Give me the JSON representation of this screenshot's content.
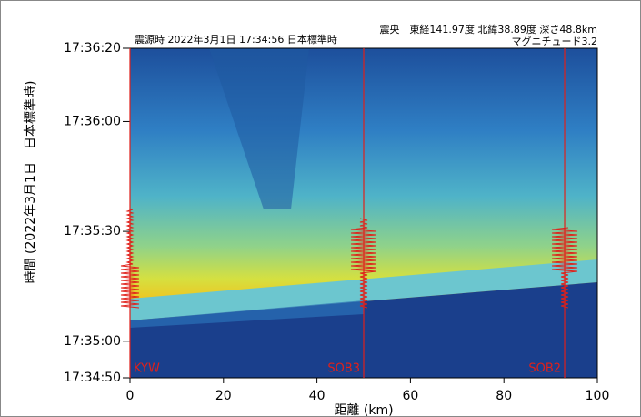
{
  "chart_data": {
    "type": "waterfall",
    "title": "震源時 2022年3月1日 17:34:56 日本標準時",
    "epicenter": "震央　東経141.97度 北緯38.89度 深さ48.8km",
    "magnitude": "マグニチュード3.2",
    "x_label": "距離 (km)",
    "y_label": "時間 (2022年3月1日　日本標準時)",
    "xlim": [
      0,
      100
    ],
    "xticks": [
      0,
      20,
      40,
      60,
      80,
      100
    ],
    "ylim": [
      "17:34:50",
      "17:36:20"
    ],
    "yticks": [
      "17:34:50",
      "17:35:00",
      "17:35:30",
      "17:36:00",
      "17:36:20"
    ],
    "stations": [
      {
        "name": "KYW",
        "x": 0
      },
      {
        "name": "SOB3",
        "x": 50
      },
      {
        "name": "SOB2",
        "x": 93
      }
    ],
    "station_color": "#e0201a"
  }
}
